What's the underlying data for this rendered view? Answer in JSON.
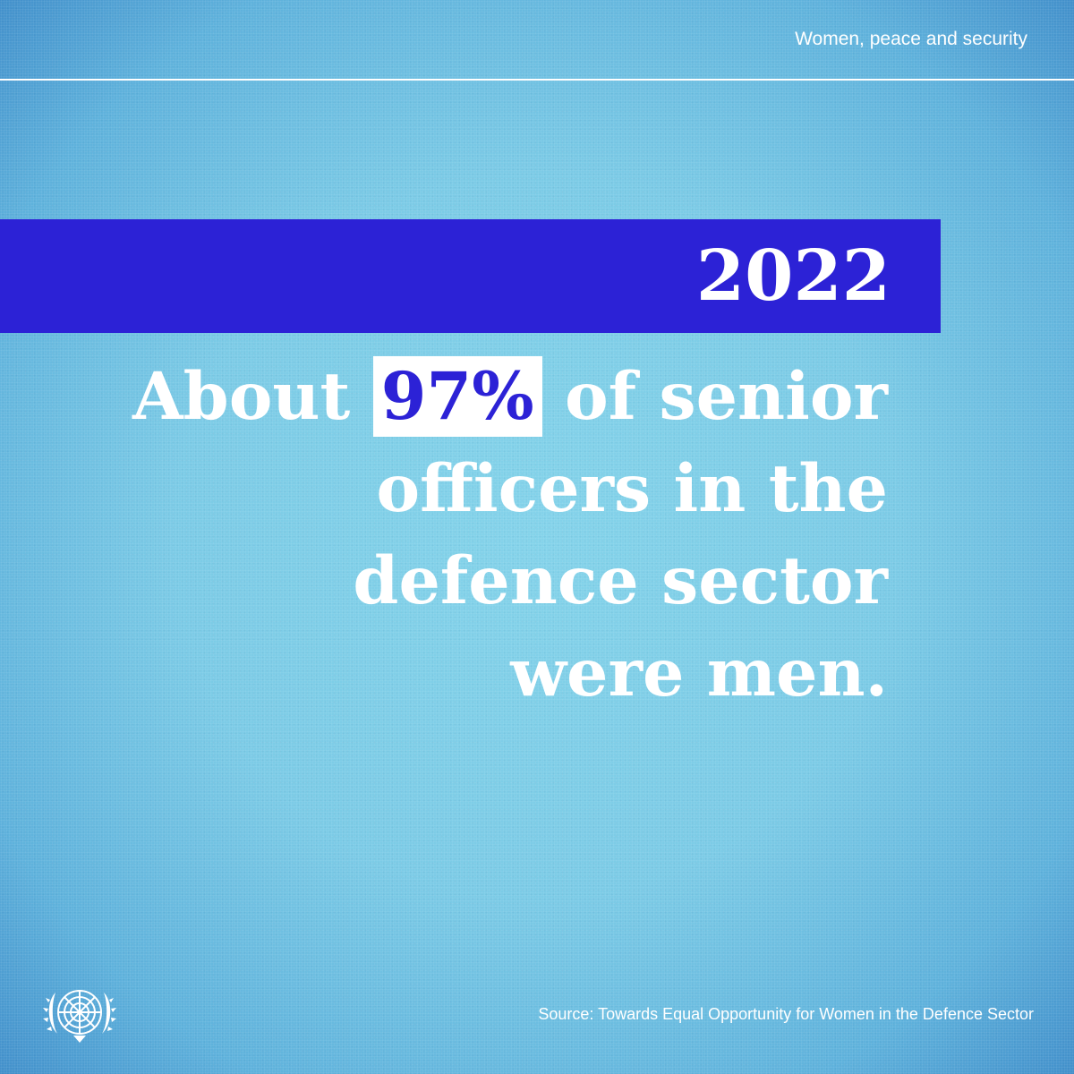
{
  "header": {
    "label": "Women, peace and security"
  },
  "year": "2022",
  "statement": {
    "prefix": "About",
    "highlight": "97%",
    "line1_suffix": "of senior",
    "line2": "officers in the",
    "line3": "defence sector",
    "line4": "were men."
  },
  "footer": {
    "source": "Source: Towards Equal Opportunity for Women in the Defence Sector",
    "emblem_icon": "un-emblem-icon"
  },
  "colors": {
    "band": "#2c22d6",
    "text": "#ffffff",
    "background": "#7ccbe6"
  }
}
